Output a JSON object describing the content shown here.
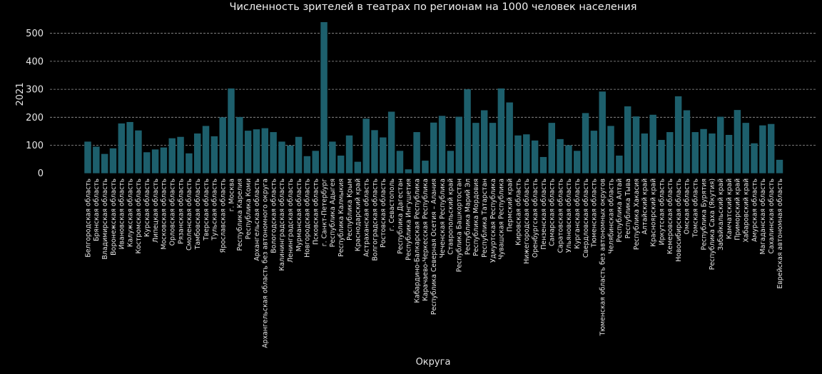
{
  "chart_data": {
    "type": "bar",
    "title": "Численность зрителей в театрах по регионам на 1000 человек населения",
    "xlabel": "Округа",
    "ylabel": "2021",
    "ylim": [
      0,
      568
    ],
    "yticks": [
      0,
      100,
      200,
      300,
      400,
      500
    ],
    "grid": "y, dashed",
    "bar_color": "#1d5f6c",
    "categories": [
      "Белгородская область",
      "Брянская область",
      "Владимирская область",
      "Воронежская область",
      "Ивановская область",
      "Калужская область",
      "Костромская область",
      "Курская область",
      "Липецкая область",
      "Московская область",
      "Орловская область",
      "Рязанская область",
      "Смоленская область",
      "Тамбовская область",
      "Тверская область",
      "Тульская область",
      "Ярославская область",
      "г. Москва",
      "Республика Карелия",
      "Республика Коми",
      "Архангельская область",
      "Архангельская область без автономного округа",
      "Вологодская область",
      "Калининградская область",
      "Ленинградская область",
      "Мурманская область",
      "Новгородская область",
      "Псковская область",
      "г. Санкт-Петербург",
      "Республика Адыгея",
      "Республика Калмыкия",
      "Республика Крым",
      "Краснодарский край",
      "Астраханская область",
      "Волгоградская область",
      "Ростовская область",
      "г. Севастополь",
      "Республика Дагестан",
      "Республика Ингушетия",
      "Кабардино-Балкарская Республика",
      "Карачаево-Черкесская Республика",
      "Республика Северная Осетия – Алания",
      "Чеченская Республика",
      "Ставропольский край",
      "Республика Башкортостан",
      "Республика Марий Эл",
      "Республика Мордовия",
      "Республика Татарстан",
      "Удмуртская Республика",
      "Чувашская Республика",
      "Пермский край",
      "Кировская область",
      "Нижегородская область",
      "Оренбургская область",
      "Пензенская область",
      "Самарская область",
      "Саратовская область",
      "Ульяновская область",
      "Курганская область",
      "Свердловская область",
      "Тюменская область",
      "Тюменская область без автономных округов",
      "Челябинская область",
      "Республика Алтай",
      "Республика Тыва",
      "Республика Хакасия",
      "Алтайский край",
      "Красноярский край",
      "Иркутская область",
      "Кемеровская область",
      "Новосибирская область",
      "Омская область",
      "Томская область",
      "Республика Бурятия",
      "Республика Саха (Якутия)",
      "Забайкальский край",
      "Камчатский край",
      "Приморский край",
      "Хабаровский край",
      "Амурская область",
      "Магаданская область",
      "Сахалинская область",
      "Еврейская автономная область"
    ],
    "values": [
      113,
      95,
      69,
      89,
      178,
      183,
      153,
      75,
      85,
      92,
      125,
      130,
      71,
      142,
      169,
      132,
      200,
      303,
      201,
      152,
      157,
      161,
      147,
      113,
      99,
      130,
      61,
      80,
      540,
      113,
      63,
      135,
      41,
      195,
      154,
      128,
      220,
      80,
      14,
      147,
      45,
      181,
      205,
      80,
      202,
      300,
      180,
      225,
      180,
      303,
      253,
      135,
      139,
      117,
      58,
      180,
      122,
      100,
      80,
      215,
      152,
      292,
      169,
      63,
      239,
      203,
      142,
      209,
      119,
      147,
      275,
      225,
      147,
      158,
      142,
      202,
      137,
      226,
      180,
      107,
      171,
      176,
      48
    ]
  }
}
